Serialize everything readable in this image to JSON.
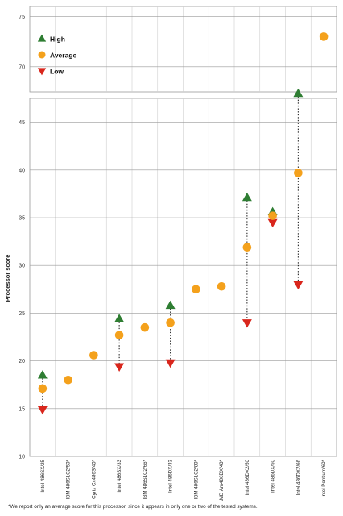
{
  "chart_data": {
    "type": "scatter",
    "ylabel": "Processor score",
    "y_ticks": [
      10,
      15,
      20,
      25,
      30,
      35,
      40,
      45,
      70,
      75
    ],
    "y_axis_break": [
      47.5,
      67.5
    ],
    "categories": [
      "Intel 486SX/25",
      "IBM 486SLC2/50*",
      "Cyrix Cx486S/40*",
      "Intel 486SX/33",
      "IBM 486SLC2/66*",
      "Intel 486DX/33",
      "IBM 486SLC2/80*",
      "AMD Am486DX/40*",
      "Intel 486DX2/50",
      "Intel 486DX/50",
      "Intel 486DX2/66",
      "Intel Pentium/60*"
    ],
    "series": [
      {
        "name": "High",
        "marker": "triangle-up",
        "color": "#2e7d32",
        "values": [
          18.5,
          null,
          null,
          24.4,
          null,
          25.8,
          null,
          null,
          37.1,
          35.6,
          48.0,
          null
        ]
      },
      {
        "name": "Average",
        "marker": "circle",
        "color": "#f4a11c",
        "values": [
          17.1,
          18.0,
          20.6,
          22.7,
          23.5,
          24.0,
          27.5,
          27.8,
          31.9,
          35.2,
          39.7,
          73.0
        ]
      },
      {
        "name": "Low",
        "marker": "triangle-down",
        "color": "#d9261c",
        "values": [
          14.9,
          null,
          null,
          19.4,
          null,
          19.8,
          null,
          null,
          24.0,
          34.5,
          28.0,
          null
        ]
      }
    ],
    "grid": true,
    "legend_position": "top-left"
  },
  "footnote": "*We report only an average score for this processor, since it appears in only one or two of the tested systems."
}
